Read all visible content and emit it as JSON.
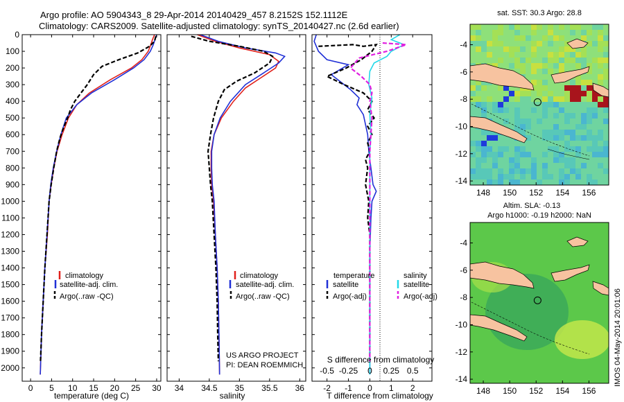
{
  "header": {
    "line1": "Argo profile: AO 5904343_8 29-Apr-2014 20140429_457 8.2152S 152.1112E",
    "line2": "Climatology: CARS2009. Satellite-adjusted climatology: synTS_20140427.nc (2.6d earlier)"
  },
  "credits": {
    "project": "US ARGO PROJECT",
    "pi": "PI: DEAN ROEMMICH",
    "stamp": "IMOS 04-May-2014 20:01:06"
  },
  "colors": {
    "climatology": "#e0201b",
    "satellite": "#1f2fd6",
    "argo": "#000000",
    "sat_salinity": "#22d8e8",
    "argo_salinity": "#e020e0"
  },
  "chart_data": [
    {
      "type": "line",
      "xlabel": "temperature (deg C)",
      "ylabel": "",
      "xlim": [
        -2,
        31
      ],
      "ylim": [
        2080,
        0
      ],
      "x_ticks": [
        0,
        5,
        10,
        15,
        20,
        25,
        30
      ],
      "y_ticks": [
        0,
        100,
        200,
        300,
        400,
        500,
        600,
        700,
        800,
        900,
        1000,
        1100,
        1200,
        1300,
        1400,
        1500,
        1600,
        1700,
        1800,
        1900,
        2000
      ],
      "legend": [
        "climatology",
        "satellite-adj. clim.",
        "Argo(..raw -QC)"
      ],
      "legend_position": "lower-right",
      "series": [
        {
          "name": "climatology",
          "color": "#e0201b",
          "dash": "solid",
          "points": [
            [
              29.5,
              0
            ],
            [
              29.0,
              30
            ],
            [
              28.6,
              60
            ],
            [
              28.0,
              100
            ],
            [
              26.5,
              150
            ],
            [
              24.0,
              200
            ],
            [
              19.0,
              270
            ],
            [
              14.0,
              350
            ],
            [
              11.0,
              420
            ],
            [
              9.0,
              500
            ],
            [
              7.5,
              600
            ],
            [
              6.3,
              700
            ],
            [
              5.5,
              800
            ],
            [
              4.9,
              900
            ],
            [
              4.4,
              1000
            ],
            [
              4.0,
              1200
            ],
            [
              3.4,
              1400
            ],
            [
              3.0,
              1600
            ],
            [
              2.6,
              1800
            ],
            [
              2.3,
              2040
            ]
          ]
        },
        {
          "name": "satellite-adj. clim.",
          "color": "#1f2fd6",
          "dash": "solid",
          "points": [
            [
              30.0,
              0
            ],
            [
              29.6,
              30
            ],
            [
              29.2,
              60
            ],
            [
              28.5,
              100
            ],
            [
              27.0,
              150
            ],
            [
              24.5,
              200
            ],
            [
              20.0,
              270
            ],
            [
              14.5,
              350
            ],
            [
              11.0,
              420
            ],
            [
              8.5,
              500
            ],
            [
              7.2,
              600
            ],
            [
              6.2,
              700
            ],
            [
              5.4,
              800
            ],
            [
              4.8,
              900
            ],
            [
              4.4,
              1000
            ],
            [
              3.9,
              1200
            ],
            [
              3.4,
              1400
            ],
            [
              3.0,
              1600
            ],
            [
              2.6,
              1800
            ],
            [
              2.3,
              2040
            ]
          ]
        },
        {
          "name": "Argo(..raw -QC)",
          "color": "#000000",
          "dash": "dashed",
          "points": [
            [
              29.8,
              10
            ],
            [
              29.5,
              40
            ],
            [
              28.3,
              70
            ],
            [
              25.5,
              110
            ],
            [
              21.0,
              150
            ],
            [
              17.0,
              190
            ],
            [
              15.0,
              240
            ],
            [
              13.5,
              300
            ],
            [
              12.0,
              350
            ],
            [
              10.5,
              400
            ],
            [
              9.5,
              450
            ],
            [
              8.8,
              500
            ],
            [
              7.8,
              560
            ],
            [
              7.0,
              620
            ],
            [
              6.2,
              700
            ],
            [
              5.5,
              800
            ],
            [
              4.9,
              900
            ],
            [
              4.4,
              1000
            ],
            [
              3.9,
              1200
            ],
            [
              3.4,
              1400
            ],
            [
              3.0,
              1600
            ],
            [
              2.6,
              1800
            ],
            [
              2.35,
              1960
            ]
          ]
        }
      ]
    },
    {
      "type": "line",
      "xlabel": "salinity",
      "ylabel": "",
      "xlim": [
        33.8,
        36.1
      ],
      "ylim": [
        2080,
        0
      ],
      "x_ticks": [
        34,
        34.5,
        35,
        35.5,
        36
      ],
      "x_tick_labels": [
        "34",
        "34.5",
        "35",
        "35.5",
        "36"
      ],
      "legend": [
        "climatology",
        "satellite-adj. clim.",
        "Argo(..raw -QC)"
      ],
      "legend_position": "lower-right",
      "series": [
        {
          "name": "climatology",
          "color": "#e0201b",
          "dash": "solid",
          "points": [
            [
              34.3,
              0
            ],
            [
              34.6,
              40
            ],
            [
              35.0,
              80
            ],
            [
              35.5,
              120
            ],
            [
              35.65,
              160
            ],
            [
              35.6,
              200
            ],
            [
              35.35,
              260
            ],
            [
              35.1,
              320
            ],
            [
              34.9,
              400
            ],
            [
              34.7,
              500
            ],
            [
              34.58,
              600
            ],
            [
              34.53,
              700
            ],
            [
              34.53,
              800
            ],
            [
              34.54,
              900
            ],
            [
              34.57,
              1000
            ],
            [
              34.6,
              1200
            ],
            [
              34.63,
              1400
            ],
            [
              34.65,
              1600
            ],
            [
              34.66,
              1800
            ],
            [
              34.67,
              2040
            ]
          ]
        },
        {
          "name": "satellite-adj. clim.",
          "color": "#1f2fd6",
          "dash": "solid",
          "points": [
            [
              34.35,
              0
            ],
            [
              34.65,
              40
            ],
            [
              35.1,
              80
            ],
            [
              35.6,
              110
            ],
            [
              35.75,
              130
            ],
            [
              35.65,
              170
            ],
            [
              35.4,
              230
            ],
            [
              35.1,
              300
            ],
            [
              34.85,
              400
            ],
            [
              34.68,
              500
            ],
            [
              34.58,
              600
            ],
            [
              34.54,
              700
            ],
            [
              34.54,
              800
            ],
            [
              34.55,
              900
            ],
            [
              34.58,
              1000
            ],
            [
              34.6,
              1200
            ],
            [
              34.63,
              1400
            ],
            [
              34.65,
              1600
            ],
            [
              34.66,
              1800
            ],
            [
              34.67,
              2040
            ]
          ]
        },
        {
          "name": "Argo(..raw -QC)",
          "color": "#000000",
          "dash": "dashed",
          "points": [
            [
              34.2,
              10
            ],
            [
              34.5,
              40
            ],
            [
              35.0,
              70
            ],
            [
              35.4,
              100
            ],
            [
              35.55,
              130
            ],
            [
              35.5,
              170
            ],
            [
              35.25,
              230
            ],
            [
              34.95,
              280
            ],
            [
              34.75,
              330
            ],
            [
              34.65,
              400
            ],
            [
              34.57,
              500
            ],
            [
              34.52,
              600
            ],
            [
              34.48,
              700
            ],
            [
              34.5,
              800
            ],
            [
              34.52,
              900
            ],
            [
              34.55,
              1000
            ],
            [
              34.58,
              1200
            ],
            [
              34.61,
              1400
            ],
            [
              34.63,
              1600
            ],
            [
              34.64,
              1800
            ],
            [
              34.65,
              1960
            ]
          ]
        }
      ]
    },
    {
      "type": "line",
      "xlabel": "T difference from climatology",
      "top_axis_label": "S difference from climatology",
      "xlim": [
        -2.7,
        2.9
      ],
      "ylim": [
        2080,
        0
      ],
      "x_ticks": [
        -2,
        -1,
        0,
        1,
        2
      ],
      "top_ticks": [
        -0.5,
        -0.25,
        0,
        0.25,
        0.5
      ],
      "top_tick_labels": [
        "-0.5",
        "-0.25",
        "0",
        "0.25",
        "0.5"
      ],
      "legend": [
        "temperature",
        "satellite",
        "Argo(-adj)",
        "salinity",
        "satellite",
        "Argo(-adj)"
      ],
      "legend_position": "lower-center",
      "series": [
        {
          "name": "satellite",
          "quantity": "temperature",
          "color": "#1f2fd6",
          "dash": "solid",
          "points": [
            [
              -2.5,
              0
            ],
            [
              -2.6,
              40
            ],
            [
              -2.4,
              100
            ],
            [
              -2.0,
              150
            ],
            [
              -1.0,
              180
            ],
            [
              -1.8,
              240
            ],
            [
              -1.4,
              280
            ],
            [
              -0.9,
              330
            ],
            [
              -0.5,
              380
            ],
            [
              -0.6,
              420
            ],
            [
              -0.3,
              480
            ],
            [
              -0.2,
              540
            ],
            [
              -0.1,
              600
            ],
            [
              -0.05,
              700
            ],
            [
              0.05,
              800
            ],
            [
              0.15,
              900
            ],
            [
              0.3,
              940
            ],
            [
              0.1,
              1000
            ],
            [
              0.05,
              1100
            ],
            [
              0.0,
              1300
            ],
            [
              0.0,
              1600
            ],
            [
              0.0,
              2040
            ]
          ]
        },
        {
          "name": "Argo(-adj)",
          "quantity": "temperature",
          "color": "#000000",
          "dash": "dashed",
          "points": [
            [
              -2.4,
              70
            ],
            [
              -0.8,
              60
            ],
            [
              -0.3,
              70
            ],
            [
              0.3,
              60
            ],
            [
              0.1,
              100
            ],
            [
              -0.4,
              150
            ],
            [
              -1.1,
              200
            ],
            [
              -2.0,
              250
            ],
            [
              -1.2,
              300
            ],
            [
              -0.3,
              350
            ],
            [
              0.1,
              400
            ],
            [
              -0.1,
              450
            ],
            [
              0.2,
              500
            ],
            [
              -0.1,
              550
            ],
            [
              0.1,
              600
            ],
            [
              -0.1,
              650
            ],
            [
              0.0,
              700
            ],
            [
              -0.2,
              750
            ],
            [
              -0.1,
              800
            ],
            [
              -0.2,
              900
            ],
            [
              -0.05,
              1000
            ],
            [
              -0.1,
              1100
            ],
            [
              0.0,
              1200
            ],
            [
              0.0,
              1500
            ],
            [
              0.0,
              1960
            ]
          ]
        },
        {
          "name": "satellite",
          "quantity": "salinity",
          "color": "#22d8e8",
          "dash": "solid",
          "points": [
            [
              1.4,
              0
            ],
            [
              1.0,
              30
            ],
            [
              1.6,
              60
            ],
            [
              1.0,
              100
            ],
            [
              0.8,
              130
            ],
            [
              0.2,
              170
            ],
            [
              0.0,
              220
            ],
            [
              -0.05,
              300
            ],
            [
              0.1,
              380
            ],
            [
              0.0,
              480
            ],
            [
              0.05,
              600
            ],
            [
              0.0,
              700
            ],
            [
              0.0,
              1000
            ],
            [
              0.0,
              2040
            ]
          ]
        },
        {
          "name": "Argo(-adj)",
          "quantity": "salinity",
          "color": "#e020e0",
          "dash": "dashed",
          "points": [
            [
              0.6,
              50
            ],
            [
              1.7,
              60
            ],
            [
              0.8,
              100
            ],
            [
              -0.5,
              140
            ],
            [
              -0.9,
              200
            ],
            [
              -0.4,
              250
            ],
            [
              0.0,
              300
            ],
            [
              0.1,
              350
            ],
            [
              0.0,
              400
            ],
            [
              0.1,
              500
            ],
            [
              0.0,
              700
            ],
            [
              0.0,
              1200
            ],
            [
              0.0,
              1960
            ]
          ]
        }
      ]
    },
    {
      "type": "heatmap",
      "title": "sat. SST: 30.3 Argo: 28.8",
      "xlim": [
        147,
        157.5
      ],
      "ylim": [
        -14.3,
        -2.5
      ],
      "x_ticks": [
        148,
        150,
        152,
        154,
        156
      ],
      "y_ticks": [
        -4,
        -6,
        -8,
        -10,
        -12,
        -14
      ],
      "marker": {
        "lon": 152.1112,
        "lat": -8.2152
      }
    },
    {
      "type": "heatmap",
      "title_line1": "Altim. SLA: -0.13",
      "title_line2": "Argo h1000: -0.19 h2000: NaN",
      "xlim": [
        147,
        157.5
      ],
      "ylim": [
        -14.3,
        -2.5
      ],
      "x_ticks": [
        148,
        150,
        152,
        154,
        156
      ],
      "y_ticks": [
        -4,
        -6,
        -8,
        -10,
        -12,
        -14
      ],
      "marker": {
        "lon": 152.1112,
        "lat": -8.2152
      }
    }
  ]
}
